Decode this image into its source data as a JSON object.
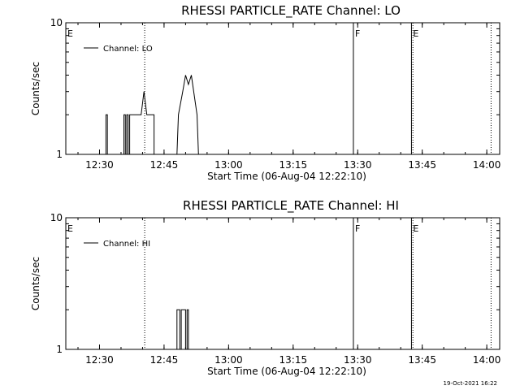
{
  "chart_data": [
    {
      "type": "line",
      "title": "RHESSI PARTICLE_RATE Channel: LO",
      "xlabel": "Start Time (06-Aug-04 12:22:10)",
      "ylabel": "Counts/sec",
      "y_scale": "log",
      "ylim": [
        1,
        10
      ],
      "y_ticks": [
        "1",
        "10"
      ],
      "xlim": [
        "12:22:10",
        "14:03"
      ],
      "x_tick_labels": [
        "12:30",
        "12:45",
        "13:00",
        "13:15",
        "13:30",
        "13:45",
        "14:00"
      ],
      "legend": {
        "placement": "top-left",
        "entries": [
          "Channel: LO"
        ]
      },
      "series": [
        {
          "name": "Channel: LO",
          "points": [
            [
              "12:22:10",
              1
            ],
            [
              "12:31:30",
              1
            ],
            [
              "12:31:30",
              2
            ],
            [
              "12:31:50",
              2
            ],
            [
              "12:31:50",
              1
            ],
            [
              "12:35:40",
              1
            ],
            [
              "12:35:40",
              2
            ],
            [
              "12:36:00",
              2
            ],
            [
              "12:36:00",
              1
            ],
            [
              "12:36:20",
              1
            ],
            [
              "12:36:20",
              2
            ],
            [
              "12:36:40",
              2
            ],
            [
              "12:36:40",
              1
            ],
            [
              "12:37:00",
              1
            ],
            [
              "12:37:00",
              2
            ],
            [
              "12:39:40",
              2
            ],
            [
              "12:40:20",
              3
            ],
            [
              "12:41:00",
              2
            ],
            [
              "12:42:40",
              2
            ],
            [
              "12:42:40",
              1
            ],
            [
              "12:48:00",
              1
            ],
            [
              "12:48:20",
              2
            ],
            [
              "12:49:20",
              3
            ],
            [
              "12:50:00",
              4
            ],
            [
              "12:50:40",
              3.4
            ],
            [
              "12:51:20",
              4
            ],
            [
              "12:52:40",
              2
            ],
            [
              "12:53:00",
              1
            ],
            [
              "14:03:00",
              1
            ]
          ]
        }
      ],
      "markers": [
        {
          "label": "E",
          "time": "12:22:10",
          "style": "solid"
        },
        {
          "label": "",
          "time": "12:40:30",
          "style": "dotted"
        },
        {
          "label": "F",
          "time": "13:29:00",
          "style": "solid"
        },
        {
          "label": "E",
          "time": "13:42:30",
          "style": "solid"
        },
        {
          "label": "",
          "time": "13:42:50",
          "style": "dotted"
        },
        {
          "label": "",
          "time": "14:01:00",
          "style": "dotted"
        }
      ]
    },
    {
      "type": "line",
      "title": "RHESSI PARTICLE_RATE Channel: HI",
      "xlabel": "Start Time (06-Aug-04 12:22:10)",
      "ylabel": "Counts/sec",
      "y_scale": "log",
      "ylim": [
        1,
        10
      ],
      "y_ticks": [
        "1",
        "10"
      ],
      "xlim": [
        "12:22:10",
        "14:03"
      ],
      "x_tick_labels": [
        "12:30",
        "12:45",
        "13:00",
        "13:15",
        "13:30",
        "13:45",
        "14:00"
      ],
      "legend": {
        "placement": "top-left",
        "entries": [
          "Channel: HI"
        ]
      },
      "series": [
        {
          "name": "Channel: HI",
          "points": [
            [
              "12:22:10",
              1
            ],
            [
              "12:48:00",
              1
            ],
            [
              "12:48:00",
              2
            ],
            [
              "12:48:40",
              2
            ],
            [
              "12:48:40",
              1
            ],
            [
              "12:49:00",
              1
            ],
            [
              "12:49:00",
              2
            ],
            [
              "12:50:00",
              2
            ],
            [
              "12:50:00",
              1
            ],
            [
              "12:50:20",
              1
            ],
            [
              "12:50:20",
              2
            ],
            [
              "12:50:40",
              2
            ],
            [
              "12:50:40",
              1
            ],
            [
              "14:03:00",
              1
            ]
          ]
        }
      ],
      "markers": [
        {
          "label": "E",
          "time": "12:22:10",
          "style": "solid"
        },
        {
          "label": "",
          "time": "12:40:30",
          "style": "dotted"
        },
        {
          "label": "F",
          "time": "13:29:00",
          "style": "solid"
        },
        {
          "label": "E",
          "time": "13:42:30",
          "style": "solid"
        },
        {
          "label": "",
          "time": "13:42:50",
          "style": "dotted"
        },
        {
          "label": "",
          "time": "14:01:00",
          "style": "dotted"
        }
      ]
    }
  ],
  "footer": {
    "timestamp": "19-Oct-2021 16:22"
  }
}
